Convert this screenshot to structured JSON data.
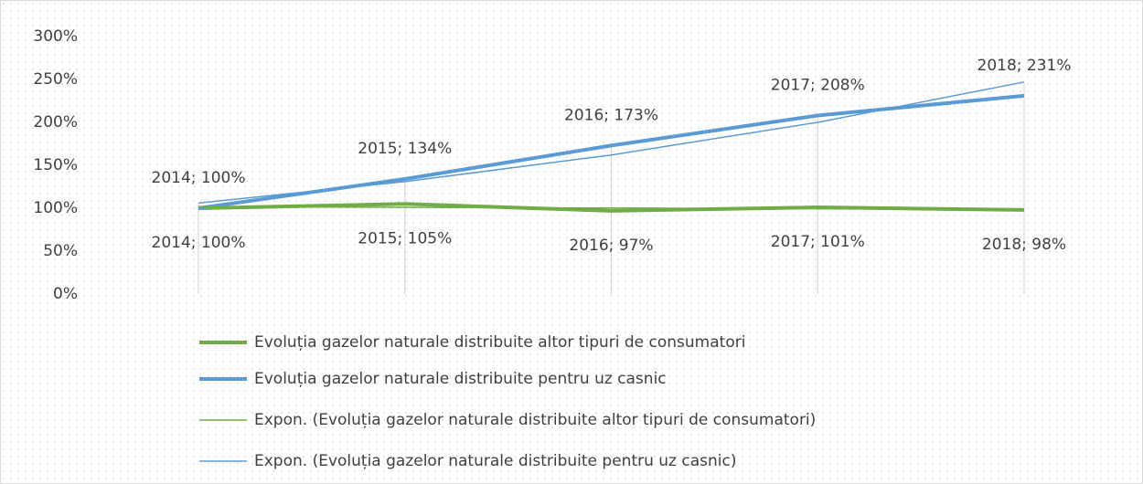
{
  "chart_data": {
    "type": "line",
    "ylim": [
      0,
      300
    ],
    "yticks": [
      {
        "value": 0,
        "label": "0%"
      },
      {
        "value": 50,
        "label": "50%"
      },
      {
        "value": 100,
        "label": "100%"
      },
      {
        "value": 150,
        "label": "150%"
      },
      {
        "value": 200,
        "label": "200%"
      },
      {
        "value": 250,
        "label": "250%"
      },
      {
        "value": 300,
        "label": "300%"
      }
    ],
    "series": [
      {
        "name": "Evoluția gazelor naturale distribuite altor tipuri de consumatori",
        "color": "#70ad47",
        "values": [
          100,
          105,
          97,
          101,
          98
        ],
        "value_labels": [
          "2014; 100%",
          "2015; 105%",
          "2016; 97%",
          "2017; 101%",
          "2018; 98%"
        ]
      },
      {
        "name": "Evoluția gazelor naturale distribuite pentru uz casnic",
        "color": "#5b9bd5",
        "values": [
          100,
          134,
          173,
          208,
          231
        ],
        "value_labels": [
          "2014; 100%",
          "2015; 134%",
          "2016; 173%",
          "2017; 208%",
          "2018; 231%"
        ]
      },
      {
        "name": "Expon. (Evoluția gazelor naturale distribuite altor tipuri de consumatori)",
        "color": "#70ad47",
        "values": [
          101.8,
          101,
          100.2,
          99.4,
          98.6
        ]
      },
      {
        "name": "Expon. (Evoluția gazelor naturale distribuite pentru uz casnic)",
        "color": "#5b9bd5",
        "values": [
          106,
          131,
          162,
          200,
          247
        ]
      }
    ]
  }
}
